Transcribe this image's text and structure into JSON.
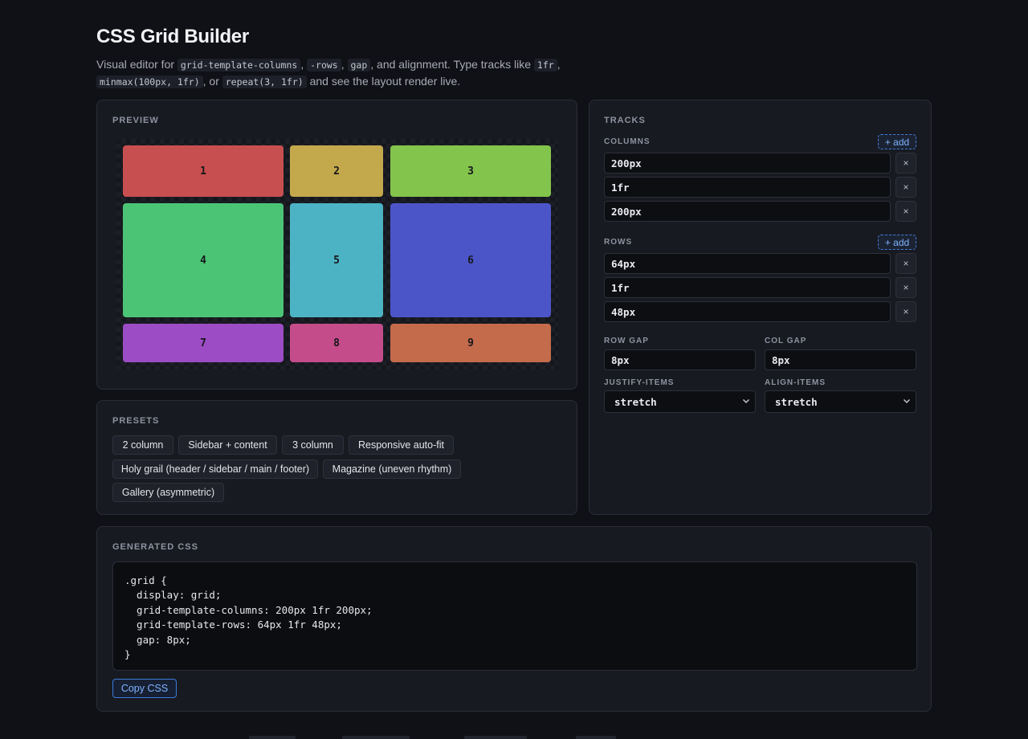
{
  "header": {
    "title": "CSS Grid Builder",
    "sub_1": "Visual editor for ",
    "code_1": "grid-template-columns",
    "sub_2": ", ",
    "code_2": "-rows",
    "sub_3": ", ",
    "code_3": "gap",
    "sub_4": ", and alignment. Type tracks like ",
    "code_4": "1fr",
    "sub_5": ", ",
    "code_5": "minmax(100px, 1fr)",
    "sub_6": ", or ",
    "code_6": "repeat(3, 1fr)",
    "sub_7": " and see the layout render live."
  },
  "preview": {
    "heading": "PREVIEW",
    "cells": [
      {
        "label": "1",
        "color": "#c84f4f"
      },
      {
        "label": "2",
        "color": "#c4a84c"
      },
      {
        "label": "3",
        "color": "#83c44c"
      },
      {
        "label": "4",
        "color": "#4cc475"
      },
      {
        "label": "5",
        "color": "#4cb3c4"
      },
      {
        "label": "6",
        "color": "#4c55c8"
      },
      {
        "label": "7",
        "color": "#9c4cc4"
      },
      {
        "label": "8",
        "color": "#c44c8a"
      },
      {
        "label": "9",
        "color": "#c46b4c"
      }
    ]
  },
  "tracks": {
    "heading": "TRACKS",
    "columns_label": "COLUMNS",
    "rows_label": "ROWS",
    "add_label": "+ add",
    "remove_label": "×",
    "columns": [
      "200px",
      "1fr",
      "200px"
    ],
    "rows": [
      "64px",
      "1fr",
      "48px"
    ],
    "row_gap_label": "ROW GAP",
    "col_gap_label": "COL GAP",
    "row_gap": "8px",
    "col_gap": "8px",
    "justify_label": "JUSTIFY-ITEMS",
    "align_label": "ALIGN-ITEMS",
    "justify_value": "stretch",
    "align_value": "stretch"
  },
  "presets": {
    "heading": "PRESETS",
    "items": [
      "2 column",
      "Sidebar + content",
      "3 column",
      "Responsive auto-fit",
      "Holy grail (header / sidebar / main / footer)",
      "Magazine (uneven rhythm)",
      "Gallery (asymmetric)"
    ]
  },
  "generated": {
    "heading": "GENERATED CSS",
    "code": ".grid {\n  display: grid;\n  grid-template-columns: 200px 1fr 200px;\n  grid-template-rows: 64px 1fr 48px;\n  gap: 8px;\n}",
    "copy_label": "Copy CSS"
  }
}
